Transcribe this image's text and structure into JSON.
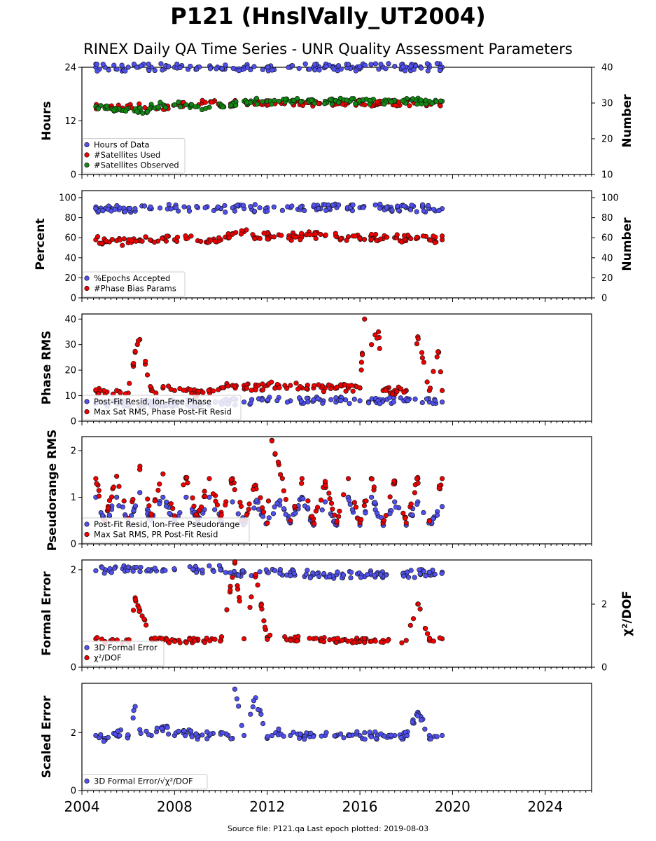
{
  "title": "P121 (HnslVally_UT2004)",
  "subtitle": "RINEX Daily QA Time Series - UNR Quality Assessment Parameters",
  "source_note": "Source file: P121.qa Last epoch plotted: 2019-08-03",
  "colors": {
    "blue": "#5050ee",
    "red": "#ee0000",
    "green": "#118811"
  },
  "chart_data": [
    {
      "type": "scatter",
      "ylabel": "Hours",
      "ylabel_right": "Number",
      "ylim": [
        0,
        24
      ],
      "yticks": [
        0,
        12,
        24
      ],
      "ylim_right": [
        10,
        40
      ],
      "yticks_right": [
        10,
        20,
        30,
        40
      ],
      "legend_position": "lower-left",
      "series": [
        {
          "name": "Hours of Data",
          "color": "#5050ee",
          "axis": "left",
          "x": [
            2004.6,
            2005.0,
            2006.0,
            2007.0,
            2008.0,
            2009.0,
            2010.0,
            2011.0,
            2012.0,
            2013.0,
            2014.0,
            2015.0,
            2016.0,
            2017.0,
            2018.0,
            2019.0,
            2019.55
          ],
          "y": [
            24,
            24,
            24,
            24,
            24,
            24,
            23.8,
            24,
            24,
            24,
            24,
            24,
            24,
            24,
            24,
            24,
            24
          ]
        },
        {
          "name": "#Satellites Used",
          "color": "#ee0000",
          "axis": "right",
          "x": [
            2005.2,
            2007.6,
            2009.2,
            2012.0,
            2016.0
          ],
          "y": [
            29,
            29,
            30,
            30,
            30
          ]
        },
        {
          "name": "#Satellites Observed",
          "color": "#118811",
          "axis": "right",
          "x": [
            2004.6,
            2005.0,
            2005.5,
            2006.0,
            2006.5,
            2006.8,
            2007.0,
            2007.5,
            2008.0,
            2008.5,
            2009.0,
            2009.5,
            2010.0,
            2010.5,
            2011.0,
            2011.5,
            2012.0,
            2012.5,
            2013.0,
            2013.5,
            2014.0,
            2014.5,
            2015.0,
            2015.5,
            2016.0,
            2016.5,
            2017.0,
            2017.5,
            2018.0,
            2018.5,
            2019.0,
            2019.55
          ],
          "y": [
            29,
            28.5,
            28,
            28.5,
            28,
            27.5,
            29,
            29.5,
            29.5,
            29.5,
            29,
            28.8,
            29,
            30,
            30.5,
            30.5,
            30.5,
            30.5,
            30.5,
            30.5,
            30.5,
            30.5,
            30.5,
            30.5,
            30.5,
            30.5,
            30.5,
            30.5,
            30.5,
            30.5,
            30.5,
            30.5
          ]
        }
      ]
    },
    {
      "type": "scatter",
      "ylabel": "Percent",
      "ylabel_right": "Number",
      "ylim": [
        0,
        107
      ],
      "yticks": [
        0,
        20,
        40,
        60,
        80,
        100
      ],
      "ylim_right": [
        0,
        107
      ],
      "yticks_right": [
        0,
        20,
        40,
        60,
        80,
        100
      ],
      "legend_position": "lower-left",
      "series": [
        {
          "name": "%Epochs Accepted",
          "color": "#5050ee",
          "axis": "left",
          "x": [
            2004.6,
            2005.0,
            2006.0,
            2007.0,
            2008.0,
            2009.0,
            2010.0,
            2011.0,
            2012.0,
            2013.0,
            2014.0,
            2015.0,
            2016.0,
            2017.0,
            2018.0,
            2019.0,
            2019.55
          ],
          "y": [
            89,
            89,
            89,
            89,
            90,
            90,
            89,
            89,
            90,
            90,
            91,
            90,
            90,
            90,
            90,
            89,
            89
          ]
        },
        {
          "name": "#Phase Bias Params",
          "color": "#ee0000",
          "axis": "right",
          "x": [
            2004.6,
            2005.0,
            2005.5,
            2006.0,
            2006.5,
            2007.0,
            2007.5,
            2008.0,
            2008.5,
            2009.0,
            2009.5,
            2010.0,
            2010.5,
            2011.0,
            2011.5,
            2012.0,
            2012.5,
            2013.0,
            2013.5,
            2014.0,
            2014.5,
            2015.0,
            2015.5,
            2016.0,
            2016.5,
            2017.0,
            2017.5,
            2018.0,
            2018.5,
            2019.0,
            2019.55
          ],
          "y": [
            58,
            56,
            57,
            55,
            58,
            57,
            60,
            58,
            59,
            57,
            56,
            58,
            64,
            66,
            60,
            62,
            63,
            61,
            62,
            63,
            62,
            61,
            61,
            60,
            60,
            59,
            60,
            59,
            60,
            58,
            58
          ]
        }
      ]
    },
    {
      "type": "scatter",
      "ylabel": "Phase RMS",
      "ylim": [
        0,
        42
      ],
      "yticks": [
        0,
        10,
        20,
        30,
        40
      ],
      "legend_position": "lower-left",
      "series": [
        {
          "name": "Post-Fit Resid, Ion-Free Phase",
          "color": "#5050ee",
          "x": [
            2004.6,
            2005.0,
            2006.0,
            2007.0,
            2008.0,
            2009.0,
            2010.0,
            2011.0,
            2012.0,
            2013.0,
            2014.0,
            2015.0,
            2016.0,
            2017.0,
            2018.0,
            2019.0,
            2019.55
          ],
          "y": [
            7,
            7,
            7,
            7,
            7,
            7,
            7.5,
            7.5,
            8,
            8,
            8,
            8,
            8,
            8,
            8,
            7.5,
            7.5
          ]
        },
        {
          "name": "Max Sat RMS, Phase Post-Fit Resid",
          "color": "#ee0000",
          "x": [
            2004.6,
            2005.0,
            2005.5,
            2006.0,
            2006.3,
            2006.5,
            2007.0,
            2007.5,
            2008.0,
            2008.5,
            2009.0,
            2009.5,
            2010.0,
            2010.5,
            2011.0,
            2011.5,
            2012.0,
            2012.5,
            2013.0,
            2013.5,
            2014.0,
            2014.5,
            2015.0,
            2015.5,
            2016.0,
            2016.2,
            2016.5,
            2016.8,
            2017.0,
            2017.5,
            2018.0,
            2018.5,
            2019.0,
            2019.4,
            2019.55
          ],
          "y": [
            12,
            11,
            12,
            11,
            27,
            32,
            12,
            13,
            12,
            12,
            11,
            12,
            13,
            14,
            14,
            13,
            14,
            14,
            14,
            13,
            13,
            13,
            13,
            13,
            13,
            40,
            30,
            35,
            12,
            12,
            12,
            33,
            12,
            27,
            12
          ]
        }
      ]
    },
    {
      "type": "scatter",
      "ylabel": "Pseudorange RMS",
      "ylim": [
        0,
        2.3
      ],
      "yticks": [
        0,
        1,
        2
      ],
      "legend_position": "lower-left",
      "series": [
        {
          "name": "Post-Fit Resid, Ion-Free Pseudorange",
          "color": "#5050ee",
          "x": [
            2004.6,
            2005.0,
            2005.5,
            2006.0,
            2006.5,
            2007.0,
            2007.5,
            2008.0,
            2008.5,
            2009.0,
            2009.5,
            2010.0,
            2010.5,
            2011.0,
            2011.5,
            2012.0,
            2012.5,
            2013.0,
            2013.5,
            2014.0,
            2014.5,
            2015.0,
            2015.5,
            2016.0,
            2016.5,
            2017.0,
            2017.5,
            2018.0,
            2018.5,
            2019.0,
            2019.55
          ],
          "y": [
            1.0,
            0.45,
            1.0,
            0.45,
            1.1,
            0.5,
            1.0,
            0.5,
            1.0,
            0.5,
            1.0,
            0.5,
            0.9,
            0.45,
            0.9,
            0.45,
            0.9,
            0.45,
            1.0,
            0.4,
            0.9,
            0.4,
            1.0,
            0.4,
            1.0,
            0.4,
            0.9,
            0.4,
            0.9,
            0.45,
            0.8
          ]
        },
        {
          "name": "Max Sat RMS, PR Post-Fit Resid",
          "color": "#ee0000",
          "x": [
            2004.6,
            2005.0,
            2005.5,
            2006.0,
            2006.5,
            2007.0,
            2007.5,
            2008.0,
            2008.5,
            2009.0,
            2009.5,
            2010.0,
            2010.5,
            2011.0,
            2011.5,
            2012.0,
            2012.2,
            2012.5,
            2013.0,
            2013.5,
            2014.0,
            2014.5,
            2015.0,
            2015.5,
            2016.0,
            2016.5,
            2017.0,
            2017.5,
            2018.0,
            2018.5,
            2019.0,
            2019.55
          ],
          "y": [
            1.4,
            0.5,
            1.45,
            0.55,
            1.6,
            0.6,
            1.5,
            0.6,
            1.4,
            0.55,
            1.4,
            0.6,
            1.4,
            0.5,
            1.25,
            0.45,
            2.22,
            1.7,
            0.5,
            1.4,
            0.45,
            1.3,
            0.45,
            1.4,
            0.45,
            1.4,
            0.45,
            1.35,
            0.45,
            1.4,
            0.5,
            1.4
          ]
        }
      ]
    },
    {
      "type": "scatter",
      "ylabel": "Formal Error",
      "ylabel_right": "χ²/DOF",
      "ylim": [
        0,
        2.2
      ],
      "yticks": [
        0,
        2
      ],
      "ylim_right": [
        0,
        3.4
      ],
      "yticks_right": [
        0,
        2
      ],
      "legend_position": "lower-left",
      "series": [
        {
          "name": "3D Formal Error",
          "color": "#5050ee",
          "axis": "left",
          "x": [
            2004.6,
            2005.0,
            2006.0,
            2007.0,
            2008.0,
            2009.0,
            2010.0,
            2010.5,
            2011.0,
            2012.0,
            2013.0,
            2014.0,
            2015.0,
            2016.0,
            2017.0,
            2018.0,
            2019.0,
            2019.55
          ],
          "y": [
            1.98,
            2.0,
            2.05,
            2.0,
            2.0,
            2.0,
            2.02,
            1.92,
            1.95,
            1.95,
            1.95,
            1.9,
            1.9,
            1.9,
            1.9,
            1.9,
            1.95,
            1.95
          ]
        },
        {
          "name": "χ²/DOF",
          "color": "#ee0000",
          "axis": "right",
          "x": [
            2004.6,
            2005.0,
            2005.5,
            2006.0,
            2006.3,
            2006.5,
            2007.0,
            2007.5,
            2008.0,
            2009.0,
            2010.0,
            2010.6,
            2011.0,
            2011.5,
            2012.0,
            2013.0,
            2014.0,
            2015.0,
            2016.0,
            2017.0,
            2018.0,
            2018.5,
            2019.0,
            2019.55
          ],
          "y": [
            0.9,
            0.8,
            0.85,
            0.8,
            2.2,
            1.8,
            0.9,
            0.85,
            0.85,
            0.85,
            0.85,
            3.3,
            0.9,
            2.9,
            0.95,
            0.9,
            0.9,
            0.85,
            0.85,
            0.85,
            0.85,
            2.0,
            0.85,
            0.9
          ]
        }
      ]
    },
    {
      "type": "scatter",
      "ylabel": "Scaled Error",
      "ylim": [
        0,
        3.7
      ],
      "yticks": [
        0,
        2
      ],
      "legend_position": "lower-left",
      "series": [
        {
          "name": "3D Formal Error/√χ²/DOF",
          "color": "#5050ee",
          "x": [
            2004.6,
            2005.0,
            2005.5,
            2006.0,
            2006.3,
            2006.5,
            2007.0,
            2007.5,
            2008.0,
            2008.5,
            2009.0,
            2009.5,
            2010.0,
            2010.5,
            2010.6,
            2011.0,
            2011.5,
            2012.0,
            2012.5,
            2013.0,
            2013.5,
            2014.0,
            2014.5,
            2015.0,
            2015.5,
            2016.0,
            2016.5,
            2017.0,
            2017.5,
            2018.0,
            2018.5,
            2019.0,
            2019.55
          ],
          "y": [
            1.9,
            1.8,
            2.0,
            1.9,
            2.9,
            2.1,
            1.9,
            2.2,
            1.9,
            2.0,
            1.9,
            1.9,
            2.0,
            1.8,
            3.5,
            1.9,
            3.2,
            1.8,
            2.0,
            1.9,
            1.9,
            1.9,
            1.9,
            1.9,
            1.9,
            1.9,
            1.9,
            1.9,
            1.9,
            1.9,
            2.7,
            1.9,
            1.9
          ]
        }
      ]
    }
  ],
  "x_axis": {
    "xlim": [
      2004,
      2026
    ],
    "ticks": [
      2004,
      2008,
      2012,
      2016,
      2020,
      2024
    ],
    "tick_labels": [
      "2004",
      "2008",
      "2012",
      "2016",
      "2020",
      "2024"
    ]
  }
}
